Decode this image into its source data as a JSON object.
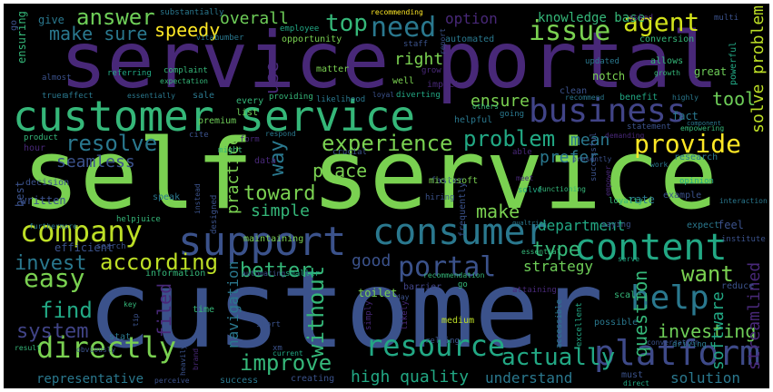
{
  "wordcloud": {
    "words": [
      {
        "text": "self service",
        "color": "#7ad151"
      },
      {
        "text": "customer",
        "color": "#3b528b"
      },
      {
        "text": "service portal",
        "color": "#482878"
      },
      {
        "text": "customer service",
        "color": "#35b779"
      },
      {
        "text": "business",
        "color": "#414487"
      },
      {
        "text": "content",
        "color": "#22a884"
      },
      {
        "text": "support",
        "color": "#3b528b"
      },
      {
        "text": "consumer",
        "color": "#2a788e"
      },
      {
        "text": "company",
        "color": "#bddf26"
      },
      {
        "text": "platform",
        "color": "#3e4a89"
      },
      {
        "text": "directly",
        "color": "#7ad151"
      },
      {
        "text": "help",
        "color": "#2a788e"
      },
      {
        "text": "resource",
        "color": "#22a884"
      },
      {
        "text": "easy",
        "color": "#7ad151"
      },
      {
        "text": "need",
        "color": "#2a788e"
      },
      {
        "text": "issue",
        "color": "#7ad151"
      },
      {
        "text": "provide",
        "color": "#fde725"
      },
      {
        "text": "agent",
        "color": "#d2e21b"
      },
      {
        "text": "portal",
        "color": "#3b528b"
      },
      {
        "text": "actually",
        "color": "#22a884"
      },
      {
        "text": "improve",
        "color": "#35b779"
      },
      {
        "text": "answer",
        "color": "#6ece58"
      },
      {
        "text": "top",
        "color": "#35b779"
      },
      {
        "text": "problem",
        "color": "#22a884"
      },
      {
        "text": "experience",
        "color": "#7ad151"
      },
      {
        "text": "resolve",
        "color": "#2a788e"
      },
      {
        "text": "according",
        "color": "#bddf26"
      },
      {
        "text": "invest",
        "color": "#2a788e"
      },
      {
        "text": "find",
        "color": "#22a884"
      },
      {
        "text": "system",
        "color": "#414487"
      },
      {
        "text": "better",
        "color": "#35b779"
      },
      {
        "text": "toward",
        "color": "#7ad151"
      },
      {
        "text": "way",
        "color": "#2a788e"
      },
      {
        "text": "want",
        "color": "#7ad151"
      },
      {
        "text": "type",
        "color": "#35b779"
      },
      {
        "text": "make sure",
        "color": "#2a788e"
      },
      {
        "text": "speedy",
        "color": "#fde725"
      },
      {
        "text": "overall",
        "color": "#6ece58"
      },
      {
        "text": "option",
        "color": "#482878"
      },
      {
        "text": "knowledge base",
        "color": "#35b779"
      },
      {
        "text": "use",
        "color": "#482878"
      },
      {
        "text": "right",
        "color": "#7ad151"
      },
      {
        "text": "ensure",
        "color": "#7ad151"
      },
      {
        "text": "mean",
        "color": "#2a788e"
      },
      {
        "text": "tool",
        "color": "#6ece58"
      },
      {
        "text": "solve problem",
        "color": "#bddf26"
      },
      {
        "text": "seamless",
        "color": "#3b528b"
      },
      {
        "text": "prefer",
        "color": "#2a788e"
      },
      {
        "text": "place",
        "color": "#7ad151"
      },
      {
        "text": "simple",
        "color": "#35b779"
      },
      {
        "text": "practice",
        "color": "#7ad151"
      },
      {
        "text": "make",
        "color": "#7ad151"
      },
      {
        "text": "department",
        "color": "#22a884"
      },
      {
        "text": "strategy",
        "color": "#6ece58"
      },
      {
        "text": "good",
        "color": "#3b528b"
      },
      {
        "text": "without",
        "color": "#35b779"
      },
      {
        "text": "navigation",
        "color": "#2a788e"
      },
      {
        "text": "filed",
        "color": "#482878"
      },
      {
        "text": "high quality",
        "color": "#22a884"
      },
      {
        "text": "understand",
        "color": "#2a788e"
      },
      {
        "text": "solution",
        "color": "#2a788e"
      },
      {
        "text": "investing",
        "color": "#6ece58"
      },
      {
        "text": "software",
        "color": "#22a884"
      },
      {
        "text": "streamlined",
        "color": "#482878"
      },
      {
        "text": "question",
        "color": "#35b779"
      },
      {
        "text": "representative",
        "color": "#2a788e"
      },
      {
        "text": "written",
        "color": "#3b528b"
      },
      {
        "text": "efficient",
        "color": "#3b528b"
      },
      {
        "text": "best",
        "color": "#3b528b"
      },
      {
        "text": "ensuring",
        "color": "#35b779"
      },
      {
        "text": "give",
        "color": "#2a788e"
      },
      {
        "text": "go",
        "color": "#3b528b"
      },
      {
        "text": "employee",
        "color": "#22a884"
      },
      {
        "text": "opportunity",
        "color": "#7ad151"
      },
      {
        "text": "automated",
        "color": "#2a788e"
      },
      {
        "text": "conversion",
        "color": "#35b779"
      },
      {
        "text": "allows",
        "color": "#35b779"
      },
      {
        "text": "updated",
        "color": "#2a788e"
      },
      {
        "text": "great",
        "color": "#6ece58"
      },
      {
        "text": "powerful",
        "color": "#22a884"
      },
      {
        "text": "multi",
        "color": "#3b528b"
      },
      {
        "text": "asked",
        "color": "#482878"
      },
      {
        "text": "notch",
        "color": "#7ad151"
      },
      {
        "text": "growth",
        "color": "#35b779"
      },
      {
        "text": "benefit",
        "color": "#22a884"
      },
      {
        "text": "highly",
        "color": "#2a788e"
      },
      {
        "text": "recommend",
        "color": "#2a788e"
      },
      {
        "text": "fact",
        "color": "#2a788e"
      },
      {
        "text": "component",
        "color": "#2a788e"
      },
      {
        "text": "statement",
        "color": "#3b528b"
      },
      {
        "text": "empowering",
        "color": "#35b779"
      },
      {
        "text": "demanding",
        "color": "#482878"
      },
      {
        "text": "successful",
        "color": "#3b528b"
      },
      {
        "text": "research",
        "color": "#2a788e"
      },
      {
        "text": "presently",
        "color": "#3b528b"
      },
      {
        "text": "work",
        "color": "#2a788e"
      },
      {
        "text": "opinion",
        "color": "#22a884"
      },
      {
        "text": "example",
        "color": "#3b528b"
      },
      {
        "text": "rate",
        "color": "#2a788e"
      },
      {
        "text": "interaction",
        "color": "#2a788e"
      },
      {
        "text": "feel",
        "color": "#3b528b"
      },
      {
        "text": "expect",
        "color": "#2a788e"
      },
      {
        "text": "institute",
        "color": "#3b528b"
      },
      {
        "text": "reduce",
        "color": "#3b528b"
      },
      {
        "text": "scale",
        "color": "#35b779"
      },
      {
        "text": "possible",
        "color": "#2a788e"
      },
      {
        "text": "excellent",
        "color": "#22a884"
      },
      {
        "text": "conversation",
        "color": "#3b528b"
      },
      {
        "text": "driving",
        "color": "#2a788e"
      },
      {
        "text": "must",
        "color": "#3b528b"
      },
      {
        "text": "direct",
        "color": "#22a884"
      },
      {
        "text": "accessible",
        "color": "#2a788e"
      },
      {
        "text": "medium",
        "color": "#bddf26"
      },
      {
        "text": "relying",
        "color": "#3b528b"
      },
      {
        "text": "likely",
        "color": "#482878"
      },
      {
        "text": "simply",
        "color": "#482878"
      },
      {
        "text": "recommendation",
        "color": "#35b779"
      },
      {
        "text": "go",
        "color": "#35b779"
      },
      {
        "text": "toilet",
        "color": "#7ad151"
      },
      {
        "text": "day",
        "color": "#3b528b"
      },
      {
        "text": "barrier",
        "color": "#414487"
      },
      {
        "text": "attaining",
        "color": "#482878"
      },
      {
        "text": "essential",
        "color": "#35b779"
      },
      {
        "text": "serve",
        "color": "#22a884"
      },
      {
        "text": "functioning",
        "color": "#35b779"
      },
      {
        "text": "frequently",
        "color": "#3b528b"
      },
      {
        "text": "qualtrics",
        "color": "#2a788e"
      },
      {
        "text": "saying",
        "color": "#3b528b"
      },
      {
        "text": "empower",
        "color": "#482878"
      },
      {
        "text": "loyalty",
        "color": "#35b779"
      },
      {
        "text": "solve",
        "color": "#22a884"
      },
      {
        "text": "meet",
        "color": "#482878"
      },
      {
        "text": "hiring",
        "color": "#3b528b"
      },
      {
        "text": "faster",
        "color": "#3b528b"
      },
      {
        "text": "microsoft",
        "color": "#7ad151"
      },
      {
        "text": "able",
        "color": "#482878"
      },
      {
        "text": "crucial",
        "color": "#3b528b"
      },
      {
        "text": "designed",
        "color": "#3b528b"
      },
      {
        "text": "maintaining",
        "color": "#7ad151"
      },
      {
        "text": "automating",
        "color": "#3b528b"
      },
      {
        "text": "smaller",
        "color": "#22a884"
      },
      {
        "text": "information",
        "color": "#35b779"
      },
      {
        "text": "search",
        "color": "#3b528b"
      },
      {
        "text": "helpjuice",
        "color": "#35b779"
      },
      {
        "text": "speak",
        "color": "#2a788e"
      },
      {
        "text": "instead",
        "color": "#3b528b"
      },
      {
        "text": "data",
        "color": "#482878"
      },
      {
        "text": "form",
        "color": "#482878"
      },
      {
        "text": "might",
        "color": "#35b779"
      },
      {
        "text": "cite",
        "color": "#3b528b"
      },
      {
        "text": "respond",
        "color": "#2a788e"
      },
      {
        "text": "premium",
        "color": "#6ece58"
      },
      {
        "text": "list",
        "color": "#6ece58"
      },
      {
        "text": "every",
        "color": "#35b779"
      },
      {
        "text": "sale",
        "color": "#2a788e"
      },
      {
        "text": "providing",
        "color": "#35b779"
      },
      {
        "text": "likelihood",
        "color": "#2a788e"
      },
      {
        "text": "loyal",
        "color": "#3b528b"
      },
      {
        "text": "diverting",
        "color": "#22a884"
      },
      {
        "text": "others",
        "color": "#35b779"
      },
      {
        "text": "going",
        "color": "#2a788e"
      },
      {
        "text": "helpful",
        "color": "#2a788e"
      },
      {
        "text": "clean",
        "color": "#3b528b"
      },
      {
        "text": "impact",
        "color": "#482878"
      },
      {
        "text": "well",
        "color": "#7ad151"
      },
      {
        "text": "matter",
        "color": "#7ad151"
      },
      {
        "text": "expectation",
        "color": "#35b779"
      },
      {
        "text": "complaint",
        "color": "#35b779"
      },
      {
        "text": "referring",
        "color": "#22a884"
      },
      {
        "text": "essentially",
        "color": "#2a788e"
      },
      {
        "text": "affect",
        "color": "#2a788e"
      },
      {
        "text": "truer",
        "color": "#2a788e"
      },
      {
        "text": "almost",
        "color": "#3b528b"
      },
      {
        "text": "product",
        "color": "#35b779"
      },
      {
        "text": "hour",
        "color": "#482878"
      },
      {
        "text": "decision",
        "color": "#3b528b"
      },
      {
        "text": "furthermore",
        "color": "#2a788e"
      },
      {
        "text": "key",
        "color": "#35b779"
      },
      {
        "text": "time",
        "color": "#35b779"
      },
      {
        "text": "short",
        "color": "#3b528b"
      },
      {
        "text": "xm",
        "color": "#3b528b"
      },
      {
        "text": "current",
        "color": "#22a884"
      },
      {
        "text": "stat",
        "color": "#2a788e"
      },
      {
        "text": "tip",
        "color": "#3b528b"
      },
      {
        "text": "brand",
        "color": "#482878"
      },
      {
        "text": "result",
        "color": "#35b779"
      },
      {
        "text": "obviously",
        "color": "#3b528b"
      },
      {
        "text": "perceive",
        "color": "#3b528b"
      },
      {
        "text": "heavily",
        "color": "#3b528b"
      },
      {
        "text": "success",
        "color": "#2a788e"
      },
      {
        "text": "creating",
        "color": "#3b528b"
      },
      {
        "text": "substantially",
        "color": "#2a788e"
      },
      {
        "text": "vital",
        "color": "#2a788e"
      },
      {
        "text": "number",
        "color": "#2a788e"
      },
      {
        "text": "staff",
        "color": "#3b528b"
      },
      {
        "text": "report",
        "color": "#3b528b"
      },
      {
        "text": "grow",
        "color": "#482878"
      },
      {
        "text": "recommending",
        "color": "#fde725"
      }
    ]
  }
}
